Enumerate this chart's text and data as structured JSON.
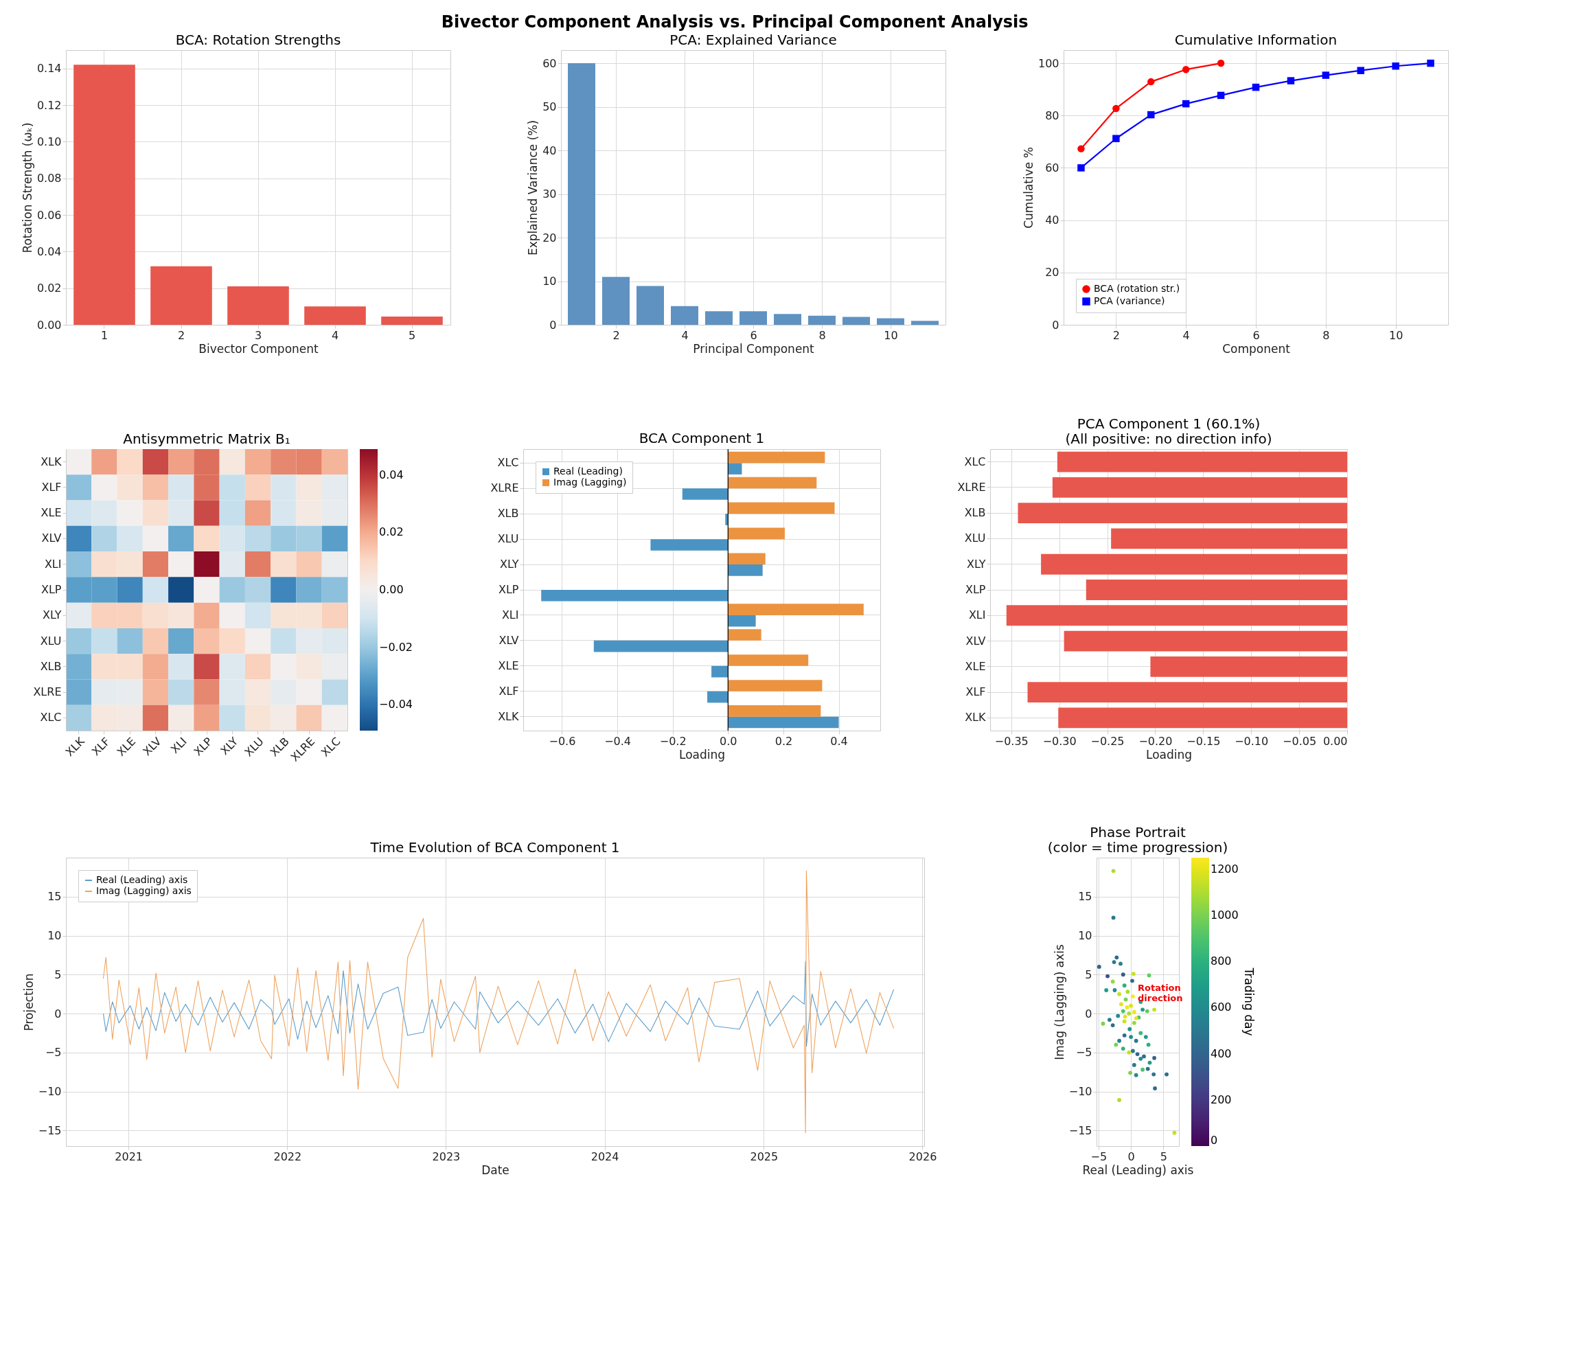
{
  "chart_data": [
    {
      "type": "other",
      "title": "Bivector Component Analysis vs. Principal Component Analysis"
    },
    {
      "type": "bar",
      "title": "BCA: Rotation Strengths",
      "xlabel": "Bivector Component",
      "ylabel": "Rotation Strength (ωₖ)",
      "categories": [
        "1",
        "2",
        "3",
        "4",
        "5"
      ],
      "values": [
        0.142,
        0.032,
        0.021,
        0.01,
        0.0045
      ],
      "color": "#e8574d",
      "ylim": [
        0,
        0.15
      ],
      "yticks": [
        {
          "value": 0,
          "label": "0.00"
        },
        0.02,
        0.04,
        0.06,
        0.08,
        {
          "value": 0.1,
          "label": "0.10"
        },
        0.12,
        0.14
      ],
      "grid": true
    },
    {
      "type": "bar",
      "title": "PCA: Explained Variance",
      "xlabel": "Principal Component",
      "ylabel": "Explained Variance (%)",
      "x": [
        1,
        2,
        3,
        4,
        5,
        6,
        7,
        8,
        9,
        10,
        11
      ],
      "values": [
        60,
        11,
        8.9,
        4.3,
        3.1,
        3.1,
        2.5,
        2.1,
        1.8,
        1.5,
        0.9
      ],
      "color": "#5f92c1",
      "xlim": [
        0.4,
        11.6
      ],
      "xticks": [
        2,
        4,
        6,
        8,
        10
      ],
      "ylim": [
        0,
        63
      ],
      "yticks": [
        0,
        10,
        20,
        30,
        40,
        50,
        60
      ],
      "grid": true
    },
    {
      "type": "line",
      "title": "Cumulative Information",
      "xlabel": "Component",
      "ylabel": "Cumulative %",
      "xlim": [
        0.5,
        11.5
      ],
      "xticks": [
        2,
        4,
        6,
        8,
        10
      ],
      "ylim": [
        0,
        105
      ],
      "yticks": [
        0,
        20,
        40,
        60,
        80,
        100
      ],
      "grid": true,
      "legend": "bottom left",
      "series": [
        {
          "name": "BCA (rotation str.)",
          "color": "#ff0000",
          "marker": "circle",
          "x": [
            1,
            2,
            3,
            4,
            5
          ],
          "values": [
            67.3,
            82.7,
            92.9,
            97.6,
            100
          ]
        },
        {
          "name": "PCA (variance)",
          "color": "#0000ff",
          "marker": "square",
          "x": [
            1,
            2,
            3,
            4,
            5,
            6,
            7,
            8,
            9,
            10,
            11
          ],
          "values": [
            60,
            71.2,
            80.3,
            84.5,
            87.7,
            90.8,
            93.3,
            95.4,
            97.2,
            98.9,
            100
          ]
        }
      ]
    },
    {
      "type": "heatmap",
      "title": "Antisymmetric Matrix B₁",
      "categories": [
        "XLK",
        "XLF",
        "XLE",
        "XLV",
        "XLI",
        "XLP",
        "XLY",
        "XLU",
        "XLB",
        "XLRE",
        "XLC"
      ],
      "y_categories": [
        "XLK",
        "XLF",
        "XLE",
        "XLV",
        "XLI",
        "XLP",
        "XLY",
        "XLU",
        "XLB",
        "XLRE",
        "XLC"
      ],
      "clim": [
        -0.049,
        0.049
      ],
      "cticks": [
        {
          "value": -0.04,
          "label": "−0.04"
        },
        {
          "value": -0.02,
          "label": "−0.02"
        },
        {
          "value": 0,
          "label": "0.00"
        },
        0.02,
        0.04
      ],
      "cells": [
        [
          0,
          0.022,
          0.01,
          0.036,
          0.022,
          0.03,
          0.004,
          0.02,
          0.026,
          0.027,
          0.018
        ],
        [
          -0.022,
          0,
          0.006,
          0.016,
          -0.008,
          0.03,
          -0.012,
          0.012,
          -0.008,
          0.004,
          -0.004
        ],
        [
          -0.01,
          -0.006,
          0,
          0.008,
          -0.006,
          0.036,
          -0.012,
          0.022,
          -0.008,
          0.003,
          -0.003
        ],
        [
          -0.036,
          -0.016,
          -0.008,
          0,
          -0.028,
          0.01,
          -0.008,
          -0.014,
          -0.02,
          -0.018,
          -0.03
        ],
        [
          -0.022,
          0.008,
          0.006,
          0.028,
          0,
          0.049,
          -0.005,
          0.028,
          0.008,
          0.014,
          -0.002
        ],
        [
          -0.03,
          -0.03,
          -0.036,
          -0.01,
          -0.049,
          0,
          -0.02,
          -0.016,
          -0.036,
          -0.026,
          -0.022
        ],
        [
          -0.004,
          0.012,
          0.012,
          0.008,
          0.005,
          0.02,
          0,
          -0.01,
          0.006,
          0.006,
          0.012
        ],
        [
          -0.02,
          -0.012,
          -0.022,
          0.014,
          -0.028,
          0.016,
          0.01,
          0,
          -0.012,
          -0.004,
          -0.006
        ],
        [
          -0.026,
          0.008,
          0.008,
          0.02,
          -0.008,
          0.036,
          -0.006,
          0.012,
          0,
          0.004,
          -0.002
        ],
        [
          -0.027,
          -0.004,
          -0.003,
          0.018,
          -0.014,
          0.026,
          -0.006,
          0.004,
          -0.004,
          0,
          -0.014
        ],
        [
          -0.018,
          0.004,
          0.003,
          0.03,
          0.002,
          0.022,
          -0.012,
          0.006,
          0.002,
          0.014,
          0
        ]
      ]
    },
    {
      "type": "bar",
      "orientation": "horizontal",
      "title": "BCA Component 1",
      "xlabel": "Loading",
      "categories": [
        "XLC",
        "XLRE",
        "XLB",
        "XLU",
        "XLY",
        "XLP",
        "XLI",
        "XLV",
        "XLE",
        "XLF",
        "XLK"
      ],
      "xlim": [
        -0.74,
        0.55
      ],
      "xticks": [
        {
          "value": -0.6,
          "label": "−0.6"
        },
        {
          "value": -0.4,
          "label": "−0.4"
        },
        {
          "value": -0.2,
          "label": "−0.2"
        },
        {
          "value": 0,
          "label": "0.0"
        },
        0.2,
        0.4
      ],
      "grid": true,
      "legend": "top left",
      "ref_lines": [
        {
          "axis": "x",
          "value": 0,
          "color": "#000000"
        }
      ],
      "series": [
        {
          "name": "Real (Leading)",
          "color": "#4a94c4",
          "values": [
            0.05,
            -0.165,
            -0.01,
            -0.28,
            0.125,
            -0.675,
            0.1,
            -0.485,
            -0.06,
            -0.075,
            0.4
          ]
        },
        {
          "name": "Imag (Lagging)",
          "color": "#ec9340",
          "values": [
            0.35,
            0.32,
            0.385,
            0.205,
            0.135,
            0.0,
            0.49,
            0.12,
            0.29,
            0.34,
            0.335
          ]
        }
      ]
    },
    {
      "type": "bar",
      "orientation": "horizontal",
      "title": "PCA Component 1 (60.1%)\n(All positive: no direction info)",
      "xlabel": "Loading",
      "categories": [
        "XLC",
        "XLRE",
        "XLB",
        "XLU",
        "XLY",
        "XLP",
        "XLI",
        "XLV",
        "XLE",
        "XLF",
        "XLK"
      ],
      "values": [
        -0.302,
        -0.307,
        -0.343,
        -0.246,
        -0.319,
        -0.272,
        -0.355,
        -0.295,
        -0.205,
        -0.333,
        -0.301
      ],
      "color": "#e8574d",
      "xlim": [
        -0.372,
        0
      ],
      "xticks": [
        {
          "value": -0.35,
          "label": "−0.35"
        },
        {
          "value": -0.3,
          "label": "−0.30"
        },
        {
          "value": -0.25,
          "label": "−0.25"
        },
        {
          "value": -0.2,
          "label": "−0.20"
        },
        {
          "value": -0.15,
          "label": "−0.15"
        },
        {
          "value": -0.1,
          "label": "−0.10"
        },
        {
          "value": -0.05,
          "label": "−0.05"
        },
        {
          "value": 0,
          "label": "0.00"
        }
      ],
      "grid": true
    },
    {
      "type": "line",
      "title": "Time Evolution of BCA Component 1",
      "xlabel": "Date",
      "ylabel": "Projection",
      "xlim": [
        "2020-08-10",
        "2026-01-05"
      ],
      "xticks": [
        "2021",
        "2022",
        "2023",
        "2024",
        "2025",
        "2026"
      ],
      "ylim": [
        -17,
        20
      ],
      "yticks": [
        {
          "value": -15,
          "label": "−15"
        },
        {
          "value": -10,
          "label": "−10"
        },
        {
          "value": -5,
          "label": "−5"
        },
        0,
        5,
        10,
        15
      ],
      "grid": true,
      "legend": "top left",
      "x": [
        "2020-11-04",
        "2020-11-10",
        "2020-11-25",
        "2020-12-10",
        "2021-01-05",
        "2021-01-25",
        "2021-02-12",
        "2021-03-05",
        "2021-03-25",
        "2021-04-20",
        "2021-05-12",
        "2021-06-10",
        "2021-07-08",
        "2021-08-05",
        "2021-09-01",
        "2021-10-05",
        "2021-11-01",
        "2021-11-26",
        "2021-12-03",
        "2022-01-05",
        "2022-01-25",
        "2022-02-15",
        "2022-03-08",
        "2022-04-05",
        "2022-04-28",
        "2022-05-10",
        "2022-05-25",
        "2022-06-13",
        "2022-07-05",
        "2022-08-10",
        "2022-09-13",
        "2022-10-05",
        "2022-11-10",
        "2022-11-30",
        "2022-12-20",
        "2023-01-20",
        "2023-03-10",
        "2023-03-20",
        "2023-05-01",
        "2023-06-15",
        "2023-08-02",
        "2023-09-15",
        "2023-10-25",
        "2023-12-05",
        "2024-01-10",
        "2024-02-20",
        "2024-04-15",
        "2024-05-20",
        "2024-07-10",
        "2024-08-05",
        "2024-09-10",
        "2024-11-06",
        "2024-12-18",
        "2025-01-15",
        "2025-03-10",
        "2025-04-04",
        "2025-04-07",
        "2025-04-09",
        "2025-04-22",
        "2025-05-12",
        "2025-06-15",
        "2025-07-20",
        "2025-08-25",
        "2025-09-25",
        "2025-10-27"
      ],
      "series": [
        {
          "name": "Real (Leading) axis",
          "color": "#5b9ccc",
          "values": [
            0.0,
            -2.3,
            1.5,
            -1.2,
            1.0,
            -2.0,
            0.8,
            -2.2,
            2.7,
            -1.0,
            1.2,
            -1.5,
            2.1,
            -1.1,
            1.4,
            -2.0,
            1.8,
            0.5,
            -1.4,
            1.9,
            -3.3,
            1.6,
            -1.8,
            2.3,
            -2.6,
            5.5,
            -2.5,
            3.8,
            -2.0,
            2.6,
            3.4,
            -2.8,
            -2.4,
            1.8,
            -1.9,
            1.5,
            -2.0,
            2.8,
            -1.2,
            1.6,
            -1.5,
            1.9,
            -2.5,
            1.2,
            -3.6,
            1.3,
            -2.3,
            1.6,
            -1.4,
            2.0,
            -1.6,
            -2.0,
            2.9,
            -1.6,
            2.3,
            1.2,
            6.7,
            -4.2,
            2.5,
            -1.5,
            1.6,
            -1.2,
            1.8,
            -1.5,
            3.1
          ]
        },
        {
          "name": "Imag (Lagging) axis",
          "color": "#f0a35e",
          "values": [
            4.5,
            7.2,
            -3.3,
            4.3,
            -4.0,
            3.3,
            -5.9,
            5.2,
            -2.5,
            3.4,
            -5.0,
            4.2,
            -4.8,
            3.0,
            -3.0,
            4.3,
            -3.5,
            -5.8,
            4.9,
            -4.2,
            5.9,
            -4.9,
            5.5,
            -6.0,
            6.6,
            -8.0,
            6.8,
            -9.7,
            6.6,
            -5.8,
            -9.6,
            7.2,
            12.2,
            -5.6,
            4.4,
            -3.6,
            4.8,
            -5.0,
            3.5,
            -4.0,
            4.2,
            -3.9,
            5.7,
            -3.5,
            2.8,
            -2.9,
            3.7,
            -3.5,
            3.3,
            -6.2,
            4.0,
            4.5,
            -7.3,
            4.2,
            -4.4,
            -1.5,
            -15.3,
            18.3,
            -7.6,
            5.4,
            -4.4,
            3.2,
            -5.1,
            2.7,
            -1.9
          ]
        }
      ]
    },
    {
      "type": "scatter",
      "title": "Phase Portrait\n(color = time progression)",
      "xlabel": "Real (Leading) axis",
      "ylabel": "Imag (Lagging) axis",
      "clabel": "Trading day",
      "xlim": [
        -5.3,
        7.4
      ],
      "xticks": [
        {
          "value": -5,
          "label": "−5"
        },
        0,
        5
      ],
      "ylim": [
        -17,
        20
      ],
      "yticks": [
        {
          "value": -15,
          "label": "−15"
        },
        {
          "value": -10,
          "label": "−10"
        },
        {
          "value": -5,
          "label": "−5"
        },
        0,
        5,
        10,
        15
      ],
      "grid": true,
      "clim": [
        0,
        1250
      ],
      "cticks": [
        0,
        200,
        400,
        600,
        800,
        1000,
        1200
      ],
      "annotations": [
        "Rotation\ndirection"
      ],
      "marker": "circle",
      "x": [
        -2.7,
        -2.7,
        -4.9,
        -2.2,
        -2.6,
        -1.6,
        -3.6,
        -2.8,
        -3.8,
        -1.2,
        0.4,
        2.8,
        -2.5,
        -1.8,
        -1.0,
        0.2,
        -0.5,
        -1.5,
        -0.8,
        0.0,
        0.5,
        -0.3,
        -1.2,
        -2.0,
        -3.3,
        -4.3,
        -2.8,
        -1.0,
        0.5,
        1.2,
        1.8,
        2.5,
        3.6,
        1.5,
        -0.2,
        -1.0,
        -1.8,
        -2.3,
        -1.2,
        0.0,
        0.8,
        1.5,
        2.3,
        2.7,
        0.3,
        1.0,
        -0.3,
        1.5,
        2.0,
        3.6,
        2.9,
        0.5,
        -0.1,
        0.8,
        1.8,
        2.6,
        3.5,
        5.5,
        3.7,
        -1.8,
        6.7,
        0.3,
        -0.6,
        0.8,
        -0.9
      ],
      "values": [
        18.3,
        12.3,
        6.0,
        7.2,
        6.6,
        6.4,
        4.8,
        4.1,
        3.0,
        5.0,
        5.1,
        4.9,
        3.0,
        2.5,
        3.6,
        4.2,
        2.8,
        1.2,
        1.8,
        1.0,
        0.2,
        0.0,
        0.3,
        -0.3,
        -0.8,
        -1.3,
        -1.5,
        -1.0,
        -1.2,
        -0.5,
        0.5,
        0.3,
        0.5,
        1.5,
        -2.0,
        -2.8,
        -3.5,
        -4.0,
        -4.5,
        -3.0,
        -3.5,
        -2.5,
        -3.0,
        -4.0,
        -4.8,
        -5.2,
        -5.0,
        -5.8,
        -5.5,
        -5.7,
        -6.3,
        -6.6,
        -7.6,
        -7.9,
        -7.2,
        -7.1,
        -7.8,
        -7.8,
        -9.6,
        -11.1,
        -15.3,
        2.2,
        0.8,
        -0.6,
        -0.4
      ],
      "cvalues": [
        1100,
        500,
        380,
        420,
        500,
        560,
        300,
        1050,
        700,
        350,
        1150,
        950,
        600,
        1150,
        800,
        450,
        1100,
        1200,
        1000,
        1180,
        1220,
        1100,
        900,
        600,
        500,
        1000,
        450,
        1150,
        1050,
        900,
        700,
        950,
        1150,
        750,
        650,
        450,
        550,
        1000,
        800,
        600,
        500,
        850,
        700,
        800,
        500,
        400,
        1150,
        600,
        450,
        400,
        700,
        500,
        1000,
        600,
        900,
        450,
        500,
        450,
        450,
        1100,
        1150,
        1240,
        1230,
        1210,
        1200
      ]
    }
  ]
}
